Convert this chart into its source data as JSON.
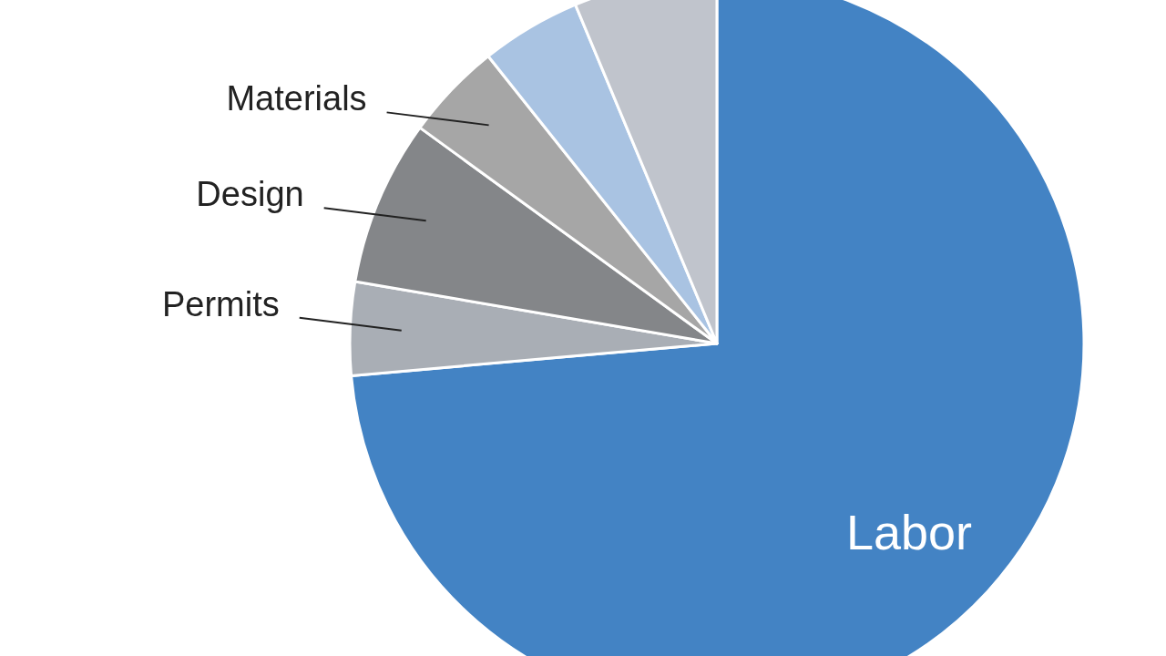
{
  "chart_data": {
    "type": "pie",
    "categories": [
      "Labor",
      "Permits",
      "Design",
      "Materials",
      null,
      null
    ],
    "values": [
      73.6,
      4.1,
      7.3,
      4.3,
      4.4,
      6.3
    ],
    "colors": [
      "#4383c4",
      "#a9aeb5",
      "#848689",
      "#a6a6a6",
      "#a9c3e2",
      "#c0c4cc"
    ]
  }
}
